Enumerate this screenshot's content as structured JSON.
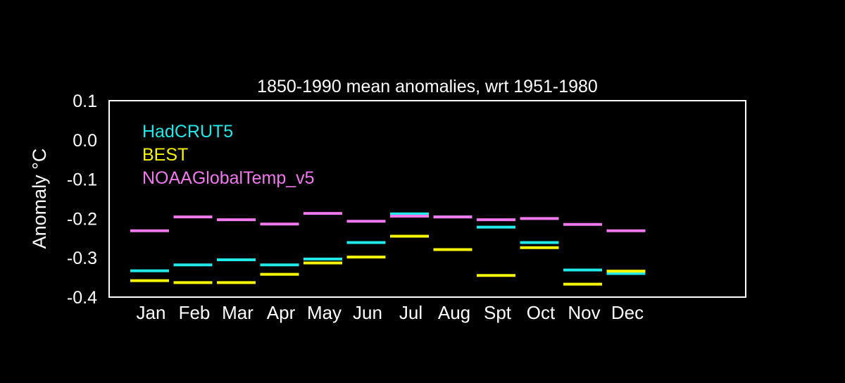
{
  "chart_data": {
    "type": "line",
    "title": "1850-1990 mean anomalies, wrt 1951-1980",
    "xlabel": "",
    "ylabel": "Anomaly °C",
    "ylim": [
      -0.4,
      0.1
    ],
    "yticks": [
      "0.1",
      "0.0",
      "-0.1",
      "-0.2",
      "-0.3",
      "-0.4"
    ],
    "categories": [
      "Jan",
      "Feb",
      "Mar",
      "Apr",
      "May",
      "Jun",
      "Jul",
      "Aug",
      "Spt",
      "Oct",
      "Nov",
      "Dec"
    ],
    "grid": false,
    "legend_position": "top-left",
    "series": [
      {
        "name": "HadCRUT5",
        "color": "#22e8e8",
        "values": [
          -0.333,
          -0.318,
          -0.305,
          -0.318,
          -0.303,
          -0.261,
          -0.188,
          -0.196,
          -0.222,
          -0.261,
          -0.331,
          -0.34
        ]
      },
      {
        "name": "BEST",
        "color": "#f5f50a",
        "values": [
          -0.358,
          -0.363,
          -0.363,
          -0.342,
          -0.313,
          -0.298,
          -0.245,
          -0.279,
          -0.345,
          -0.274,
          -0.367,
          -0.334
        ]
      },
      {
        "name": "NOAAGlobalTemp_v5",
        "color": "#f079ee",
        "values": [
          -0.231,
          -0.196,
          -0.203,
          -0.214,
          -0.187,
          -0.207,
          -0.194,
          -0.196,
          -0.203,
          -0.2,
          -0.215,
          -0.231
        ]
      }
    ]
  }
}
